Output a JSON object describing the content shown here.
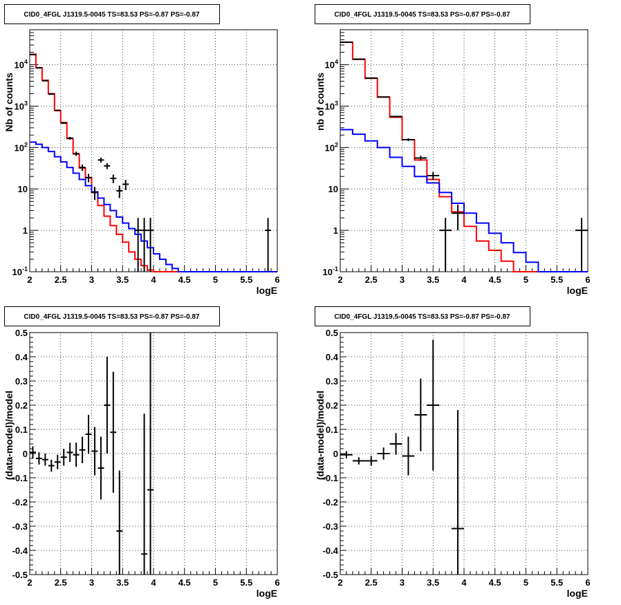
{
  "chart_data": [
    {
      "type": "line",
      "title": "CID0_4FGL J1319.5-0045 TS=83.53 PS=-0.87 PS=-0.87",
      "xlabel": "logE",
      "ylabel": "Nb of counts",
      "xlim": [
        2,
        6
      ],
      "ylim": [
        0.1,
        70000
      ],
      "yscale": "log",
      "grid": true,
      "x_ticks": [
        "2",
        "2.5",
        "3",
        "3.5",
        "4",
        "4.5",
        "5",
        "5.5",
        "6"
      ],
      "y_ticks": [
        "10^-1",
        "1",
        "10",
        "10^2",
        "10^3",
        "10^4"
      ],
      "series": [
        {
          "color": "#ff0000",
          "style": "step",
          "bin_edges": [
            2.0,
            2.1,
            2.2,
            2.3,
            2.4,
            2.5,
            2.6,
            2.7,
            2.8,
            2.9,
            3.0,
            3.1,
            3.2,
            3.3,
            3.4,
            3.5,
            3.6,
            3.7,
            3.8,
            3.9,
            4.0,
            4.1,
            4.2,
            4.3,
            4.4,
            4.5,
            4.6,
            4.7,
            4.8,
            4.9,
            5.0,
            5.1,
            5.2,
            5.3,
            5.4,
            5.5,
            5.6,
            5.7,
            5.8,
            5.9,
            6.0
          ],
          "values": [
            18000,
            8500,
            4200,
            2000,
            780,
            400,
            165,
            70,
            32,
            18.5,
            8.2,
            4.0,
            2.2,
            1.3,
            0.8,
            0.52,
            0.3,
            0.2,
            0.14,
            0.11,
            0.1,
            0.1,
            0.1,
            0.1,
            0.1,
            0.1,
            0.1,
            0.1,
            0.1,
            0.1,
            0.1,
            0.1,
            0.1,
            0.1,
            0.1,
            0.1,
            0.1,
            0.1,
            0.1,
            0.1
          ]
        },
        {
          "color": "#0000ff",
          "style": "step",
          "bin_edges": [
            2.0,
            2.1,
            2.2,
            2.3,
            2.4,
            2.5,
            2.6,
            2.7,
            2.8,
            2.9,
            3.0,
            3.1,
            3.2,
            3.3,
            3.4,
            3.5,
            3.6,
            3.7,
            3.8,
            3.9,
            4.0,
            4.1,
            4.2,
            4.3,
            4.4,
            4.5,
            4.6,
            4.7,
            4.8,
            4.9,
            5.0,
            5.1,
            5.2,
            5.3,
            5.4,
            5.5,
            5.6,
            5.7,
            5.8,
            5.9,
            6.0
          ],
          "values": [
            135,
            120,
            100,
            80,
            60,
            45,
            33,
            24,
            17,
            12,
            8.5,
            6.0,
            4.2,
            3.0,
            2.1,
            1.5,
            1.1,
            0.8,
            0.55,
            0.38,
            0.27,
            0.2,
            0.15,
            0.12,
            0.1,
            0.1,
            0.1,
            0.1,
            0.1,
            0.1,
            0.1,
            0.1,
            0.1,
            0.1,
            0.1,
            0.1,
            0.1,
            0.1,
            0.1,
            0.1
          ]
        },
        {
          "color": "#000000",
          "style": "errorbar",
          "x": [
            2.05,
            2.15,
            2.25,
            2.35,
            2.45,
            2.55,
            2.65,
            2.75,
            2.85,
            2.95,
            3.05,
            3.15,
            3.25,
            3.35,
            3.45,
            3.55,
            3.75,
            3.85,
            3.95,
            5.85
          ],
          "y": [
            17500,
            8400,
            4100,
            1950,
            790,
            390,
            168,
            71,
            33,
            18.8,
            8.3,
            50,
            36,
            18,
            9,
            13,
            1,
            1,
            1,
            1
          ],
          "xerr": 0.05,
          "yerr": [
            132,
            92,
            64,
            44,
            28,
            20,
            13,
            8.4,
            5.7,
            4.3,
            2.9,
            7,
            6,
            4.2,
            3,
            3.6,
            1,
            1,
            1,
            1
          ]
        }
      ]
    },
    {
      "type": "line",
      "title": "CID0_4FGL J1319.5-0045 TS=83.53 PS=-0.87 PS=-0.87",
      "xlabel": "logE",
      "ylabel": "nb of counts",
      "xlim": [
        2,
        6
      ],
      "ylim": [
        0.1,
        70000
      ],
      "yscale": "log",
      "grid": true,
      "x_ticks": [
        "2",
        "2.5",
        "3",
        "3.5",
        "4",
        "4.5",
        "5",
        "5.5",
        "6"
      ],
      "y_ticks": [
        "10^-1",
        "1",
        "10",
        "10^2",
        "10^3",
        "10^4"
      ],
      "series": [
        {
          "color": "#ff0000",
          "style": "step",
          "bin_edges": [
            2.0,
            2.2,
            2.4,
            2.6,
            2.8,
            3.0,
            3.2,
            3.4,
            3.6,
            3.8,
            4.0,
            4.2,
            4.4,
            4.6,
            4.8,
            5.0,
            5.2,
            5.4,
            5.6,
            5.8,
            6.0
          ],
          "values": [
            35000,
            13500,
            4700,
            1650,
            540,
            155,
            50,
            17,
            6.5,
            2.8,
            1.25,
            0.55,
            0.33,
            0.18,
            0.1,
            0.1,
            0.1,
            0.1,
            0.1,
            0.1
          ]
        },
        {
          "color": "#0000ff",
          "style": "step",
          "bin_edges": [
            2.0,
            2.2,
            2.4,
            2.6,
            2.8,
            3.0,
            3.2,
            3.4,
            3.6,
            3.8,
            4.0,
            4.2,
            4.4,
            4.6,
            4.8,
            5.0,
            5.2,
            5.4,
            5.6,
            5.8,
            6.0
          ],
          "values": [
            270,
            210,
            145,
            100,
            58,
            35,
            20,
            14,
            8.2,
            4.5,
            2.6,
            1.5,
            0.85,
            0.5,
            0.29,
            0.17,
            0.1,
            0.1,
            0.1,
            0.1
          ]
        },
        {
          "color": "#000000",
          "style": "errorbar",
          "x": [
            2.1,
            2.3,
            2.5,
            2.7,
            2.9,
            3.1,
            3.3,
            3.5,
            3.7,
            3.9,
            5.9
          ],
          "y": [
            34800,
            13600,
            4750,
            1660,
            560,
            155,
            56,
            21,
            1,
            2.6,
            1
          ],
          "xerr": 0.1,
          "yerr": [
            186,
            116,
            69,
            41,
            24,
            12.4,
            7.5,
            4.6,
            1,
            1.6,
            1
          ]
        }
      ]
    },
    {
      "type": "scatter",
      "title": "CID0_4FGL J1319.5-0045 TS=83.53 PS=-0.87 PS=-0.87",
      "xlabel": "logE",
      "ylabel": "(data-model)/model",
      "xlim": [
        2,
        6
      ],
      "ylim": [
        -0.5,
        0.5
      ],
      "grid": true,
      "x_ticks": [
        "2",
        "2.5",
        "3",
        "3.5",
        "4",
        "4.5",
        "5",
        "5.5",
        "6"
      ],
      "y_ticks": [
        "-0.5",
        "-0.4",
        "-0.3",
        "-0.2",
        "-0.1",
        "0",
        "0.1",
        "0.2",
        "0.3",
        "0.4",
        "0.5"
      ],
      "series": [
        {
          "color": "#000000",
          "style": "errorbar",
          "x": [
            2.05,
            2.15,
            2.25,
            2.35,
            2.45,
            2.55,
            2.65,
            2.75,
            2.85,
            2.95,
            3.05,
            3.15,
            3.25,
            3.35,
            3.45,
            3.85,
            3.95
          ],
          "y": [
            0.005,
            -0.02,
            -0.025,
            -0.05,
            -0.035,
            -0.015,
            0.005,
            -0.005,
            0.015,
            0.08,
            0.01,
            -0.06,
            0.2,
            0.088,
            -0.32,
            -0.415,
            -0.15
          ],
          "xerr": 0.05,
          "yerr": [
            0.025,
            0.025,
            0.025,
            0.025,
            0.03,
            0.035,
            0.04,
            0.05,
            0.055,
            0.08,
            0.1,
            0.13,
            0.2,
            0.25,
            0.25,
            0.58,
            0.65
          ]
        }
      ]
    },
    {
      "type": "scatter",
      "title": "CID0_4FGL J1319.5-0045 TS=83.53 PS=-0.87 PS=-0.87",
      "xlabel": "logE",
      "ylabel": "(data-model)/model",
      "xlim": [
        2,
        6
      ],
      "ylim": [
        -0.5,
        0.5
      ],
      "grid": true,
      "x_ticks": [
        "2",
        "2.5",
        "3",
        "3.5",
        "4",
        "4.5",
        "5",
        "5.5",
        "6"
      ],
      "y_ticks": [
        "-0.5",
        "-0.4",
        "-0.3",
        "-0.2",
        "-0.1",
        "0",
        "0.1",
        "0.2",
        "0.3",
        "0.4",
        "0.5"
      ],
      "series": [
        {
          "color": "#000000",
          "style": "errorbar",
          "x": [
            2.1,
            2.3,
            2.5,
            2.7,
            2.9,
            3.1,
            3.3,
            3.5,
            3.9
          ],
          "y": [
            -0.005,
            -0.03,
            -0.03,
            0.0,
            0.04,
            -0.01,
            0.16,
            0.2,
            -0.31
          ],
          "xerr": 0.1,
          "yerr": [
            0.015,
            0.015,
            0.02,
            0.025,
            0.045,
            0.08,
            0.15,
            0.27,
            0.49
          ]
        }
      ]
    }
  ]
}
